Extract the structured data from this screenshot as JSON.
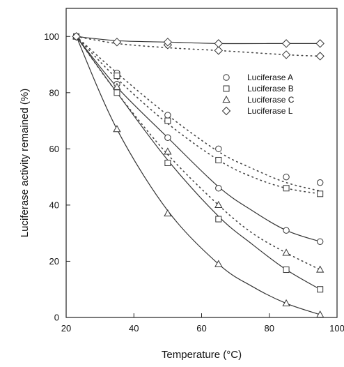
{
  "chart_data": {
    "type": "scatter",
    "title": "",
    "xlabel": "Temperature (°C)",
    "ylabel": "Luciferase activity remained (%)",
    "xlim": [
      20,
      100
    ],
    "ylim": [
      0,
      110
    ],
    "xticks": [
      20,
      40,
      60,
      80,
      100
    ],
    "yticks": [
      0,
      20,
      40,
      60,
      80,
      100
    ],
    "grid": false,
    "legend_position": "right",
    "series": [
      {
        "name": "Luciferase A",
        "marker": "circle",
        "points": [
          {
            "x": 23,
            "y": 100
          },
          {
            "x": 35,
            "y": 83
          },
          {
            "x": 35,
            "y": 87
          },
          {
            "x": 50,
            "y": 64
          },
          {
            "x": 50,
            "y": 72
          },
          {
            "x": 65,
            "y": 46
          },
          {
            "x": 65,
            "y": 60
          },
          {
            "x": 85,
            "y": 31
          },
          {
            "x": 85,
            "y": 50
          },
          {
            "x": 95,
            "y": 27
          },
          {
            "x": 95,
            "y": 48
          }
        ],
        "solid_fit": [
          [
            23,
            100
          ],
          [
            35,
            82
          ],
          [
            50,
            64
          ],
          [
            65,
            46.5
          ],
          [
            75,
            38
          ],
          [
            85,
            31
          ],
          [
            95,
            27
          ]
        ],
        "dotted_fit": [
          [
            23,
            100
          ],
          [
            35,
            87
          ],
          [
            50,
            72
          ],
          [
            65,
            59
          ],
          [
            75,
            53
          ],
          [
            85,
            48
          ],
          [
            95,
            45
          ]
        ]
      },
      {
        "name": "Luciferase B",
        "marker": "square",
        "points": [
          {
            "x": 23,
            "y": 100
          },
          {
            "x": 35,
            "y": 80
          },
          {
            "x": 35,
            "y": 86
          },
          {
            "x": 50,
            "y": 55
          },
          {
            "x": 50,
            "y": 70
          },
          {
            "x": 65,
            "y": 35
          },
          {
            "x": 65,
            "y": 56
          },
          {
            "x": 85,
            "y": 17
          },
          {
            "x": 85,
            "y": 46
          },
          {
            "x": 95,
            "y": 10
          },
          {
            "x": 95,
            "y": 44
          }
        ],
        "solid_fit": [
          [
            23,
            100
          ],
          [
            35,
            80
          ],
          [
            50,
            56
          ],
          [
            65,
            36
          ],
          [
            75,
            26
          ],
          [
            85,
            17
          ],
          [
            95,
            10
          ]
        ],
        "dotted_fit": [
          [
            23,
            100
          ],
          [
            35,
            85
          ],
          [
            50,
            69
          ],
          [
            65,
            56
          ],
          [
            75,
            50
          ],
          [
            85,
            46
          ],
          [
            95,
            44
          ]
        ]
      },
      {
        "name": "Luciferase C",
        "marker": "triangle",
        "points": [
          {
            "x": 23,
            "y": 100
          },
          {
            "x": 35,
            "y": 67
          },
          {
            "x": 35,
            "y": 82
          },
          {
            "x": 50,
            "y": 37
          },
          {
            "x": 50,
            "y": 59
          },
          {
            "x": 65,
            "y": 19
          },
          {
            "x": 65,
            "y": 40
          },
          {
            "x": 85,
            "y": 5
          },
          {
            "x": 85,
            "y": 23
          },
          {
            "x": 95,
            "y": 1
          },
          {
            "x": 95,
            "y": 17
          }
        ],
        "solid_fit": [
          [
            23,
            100
          ],
          [
            35,
            67
          ],
          [
            50,
            38
          ],
          [
            65,
            19
          ],
          [
            75,
            11
          ],
          [
            85,
            5
          ],
          [
            95,
            1
          ]
        ],
        "dotted_fit": [
          [
            23,
            100
          ],
          [
            35,
            80
          ],
          [
            50,
            58
          ],
          [
            65,
            40
          ],
          [
            75,
            30
          ],
          [
            85,
            23
          ],
          [
            95,
            17
          ]
        ]
      },
      {
        "name": "Luciferase L",
        "marker": "diamond",
        "points": [
          {
            "x": 23,
            "y": 100
          },
          {
            "x": 35,
            "y": 98
          },
          {
            "x": 50,
            "y": 97
          },
          {
            "x": 50,
            "y": 98
          },
          {
            "x": 65,
            "y": 95
          },
          {
            "x": 65,
            "y": 97.5
          },
          {
            "x": 85,
            "y": 93.5
          },
          {
            "x": 85,
            "y": 97.5
          },
          {
            "x": 95,
            "y": 93
          },
          {
            "x": 95,
            "y": 97.5
          }
        ],
        "solid_fit": [
          [
            23,
            100
          ],
          [
            35,
            98.5
          ],
          [
            50,
            98
          ],
          [
            65,
            97.5
          ],
          [
            85,
            97.5
          ],
          [
            95,
            97.5
          ]
        ],
        "dotted_fit": [
          [
            23,
            100
          ],
          [
            35,
            97.5
          ],
          [
            50,
            96
          ],
          [
            65,
            95
          ],
          [
            85,
            93.5
          ],
          [
            95,
            93
          ]
        ]
      }
    ]
  }
}
